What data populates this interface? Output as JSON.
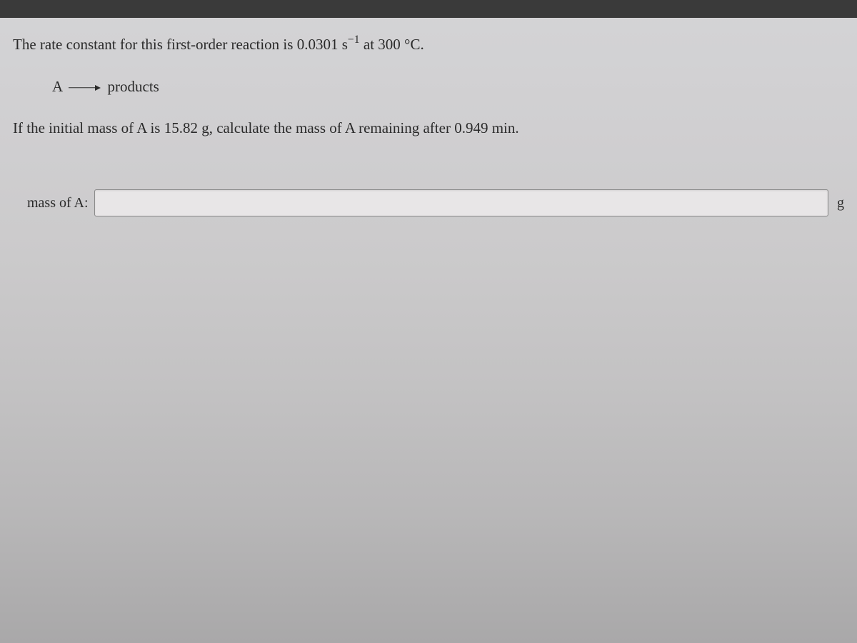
{
  "problem": {
    "line1_pre": "The rate constant for this first-order reaction is 0.0301 s",
    "line1_exp": "−1",
    "line1_post": " at 300 °C.",
    "equation_left": "A",
    "equation_right": "products",
    "line2": "If the initial mass of A is 15.82 g, calculate the mass of A remaining after 0.949 min."
  },
  "answer": {
    "label": "mass of A:",
    "value": "",
    "unit": "g"
  },
  "styling": {
    "background_gradient_top": "#d4d4d6",
    "background_gradient_bottom": "#a9a8a9",
    "text_color": "#2a2a2a",
    "frame_color": "#3a3a3a",
    "input_bg": "#e8e6e7",
    "input_border": "#8a8a8a",
    "font_family": "Georgia, Times New Roman, serif",
    "body_font_size": 21,
    "label_font_size": 20
  }
}
